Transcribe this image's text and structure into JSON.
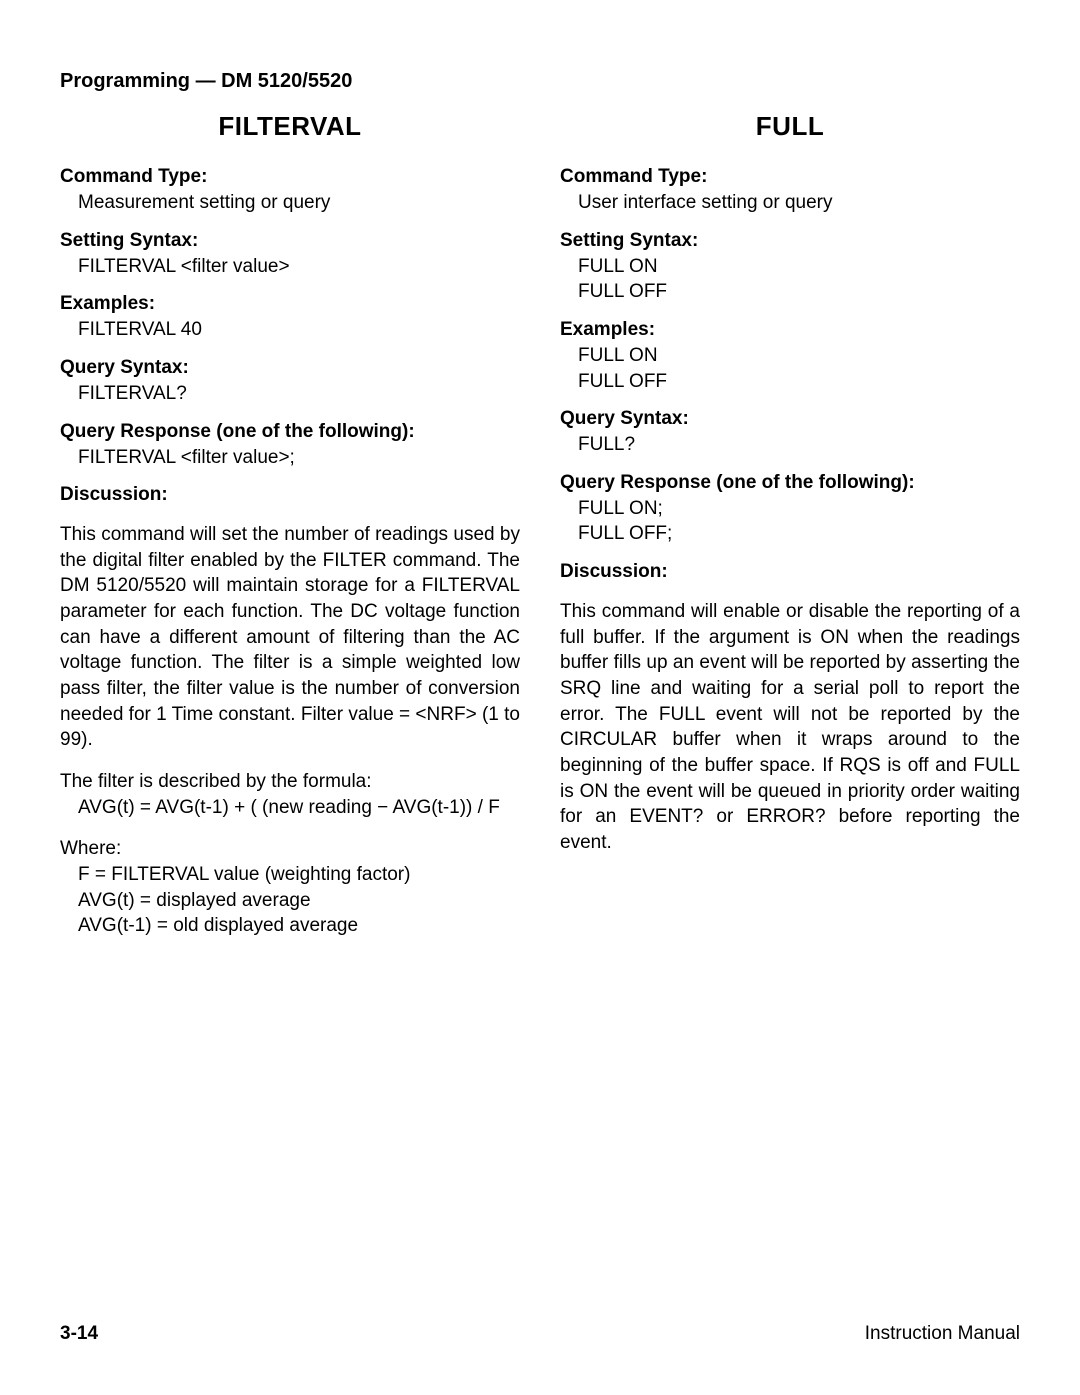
{
  "header": "Programming — DM 5120/5520",
  "left": {
    "title": "FILTERVAL",
    "command_type_label": "Command Type:",
    "command_type": "Measurement setting or query",
    "setting_syntax_label": "Setting Syntax:",
    "setting_syntax": "FILTERVAL <filter value>",
    "examples_label": "Examples:",
    "examples": "FILTERVAL 40",
    "query_syntax_label": "Query Syntax:",
    "query_syntax": "FILTERVAL?",
    "query_response_label": "Query Response (one of the following):",
    "query_response": "FILTERVAL <filter value>;",
    "discussion_label": "Discussion:",
    "discussion_p1": "This command will set the number of readings used by the digital filter enabled by the FILTER command. The DM 5120/5520 will maintain storage for a FILTERVAL parameter for each function. The DC voltage function can have a different amount of filtering than the AC voltage function. The filter is a simple weighted low pass filter, the filter value is the number of conversion needed for 1 Time constant. Filter value  =  <NRF>  (1 to 99).",
    "formula_intro": "The filter is described by the formula:",
    "formula": "AVG(t)  =  AVG(t-1) + ( (new reading − AVG(t-1)) / F",
    "where_label": "Where:",
    "where_line1": "F  =  FILTERVAL value (weighting factor)",
    "where_line2": "AVG(t)  =  displayed average",
    "where_line3": "AVG(t-1)  =  old displayed average"
  },
  "right": {
    "title": "FULL",
    "command_type_label": "Command Type:",
    "command_type": "User interface setting or query",
    "setting_syntax_label": "Setting Syntax:",
    "setting_syntax_l1": "FULL ON",
    "setting_syntax_l2": "FULL OFF",
    "examples_label": "Examples:",
    "examples_l1": "FULL ON",
    "examples_l2": "FULL OFF",
    "query_syntax_label": "Query Syntax:",
    "query_syntax": "FULL?",
    "query_response_label": "Query Response (one of the following):",
    "query_response_l1": "FULL ON;",
    "query_response_l2": "FULL OFF;",
    "discussion_label": "Discussion:",
    "discussion_p1": "This command will enable or disable the reporting of a full buffer. If the argument is ON when the readings buffer fills up an event will be reported by asserting the SRQ line and waiting for a serial poll to report the error. The FULL event will not be reported by the CIRCULAR buffer when it wraps around to the beginning of the buffer space. If RQS is off and FULL is ON the event will be queued in priority order waiting for an EVENT? or ERROR? before reporting the event."
  },
  "footer": {
    "left": "3-14",
    "right": "Instruction Manual"
  }
}
